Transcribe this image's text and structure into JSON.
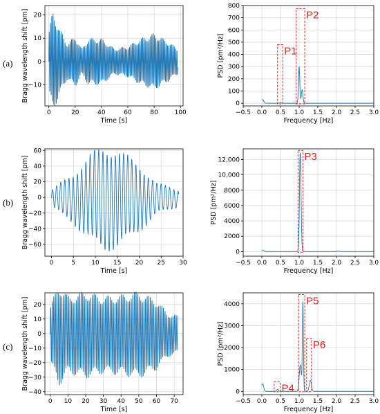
{
  "row_labels": [
    "(a)",
    "(b)",
    "(c)"
  ],
  "colors": {
    "line": "#1f77b4",
    "box": "#e8211d",
    "grid": "#d9d9d9",
    "axis": "#000000"
  },
  "chart_data": [
    {
      "id": "a-time",
      "type": "line",
      "xlabel": "Time [s]",
      "ylabel": "Bragg wavelength shift [pm]",
      "xlim": [
        -3,
        102
      ],
      "ylim": [
        -19,
        24
      ],
      "grid": true,
      "xticks": [
        0,
        20,
        40,
        60,
        80,
        100
      ],
      "xtick_labels": [
        "0",
        "20",
        "40",
        "60",
        "80",
        "100"
      ],
      "yticks": [
        -10,
        0,
        10,
        20
      ],
      "ytick_labels": [
        "−10",
        "0",
        "10",
        "20"
      ],
      "signal": {
        "t_max": 98,
        "freq_hz": 1.0,
        "envelope": [
          [
            0,
            12
          ],
          [
            3,
            20
          ],
          [
            8,
            13
          ],
          [
            14,
            7
          ],
          [
            20,
            10
          ],
          [
            25,
            5
          ],
          [
            30,
            9
          ],
          [
            40,
            9
          ],
          [
            50,
            5
          ],
          [
            60,
            6
          ],
          [
            70,
            9
          ],
          [
            80,
            11
          ],
          [
            90,
            8
          ],
          [
            98,
            5
          ]
        ]
      }
    },
    {
      "id": "a-psd",
      "type": "line",
      "xlabel": "Frequency [Hz]",
      "ylabel": "PSD [pm²/Hz]",
      "xlim": [
        -0.5,
        3.0
      ],
      "ylim": [
        -22,
        800
      ],
      "grid": true,
      "xticks": [
        -0.5,
        0.0,
        0.5,
        1.0,
        1.5,
        2.0,
        2.5,
        3.0
      ],
      "xtick_labels": [
        "−0.5",
        "0.0",
        "0.5",
        "1.0",
        "1.5",
        "2.0",
        "2.5",
        "3.0"
      ],
      "yticks": [
        0,
        100,
        200,
        300,
        400,
        500,
        600,
        700,
        800
      ],
      "ytick_labels": [
        "0",
        "100",
        "200",
        "300",
        "400",
        "500",
        "600",
        "700",
        "800"
      ],
      "peaks": [
        [
          0.02,
          30,
          0.04
        ],
        [
          0.5,
          8,
          0.03
        ],
        [
          1.0,
          300,
          0.025
        ],
        [
          1.08,
          110,
          0.03
        ]
      ],
      "boxes": [
        {
          "label": "P1",
          "x0": 0.42,
          "x1": 0.56,
          "y0": -5,
          "y1": 480
        },
        {
          "label": "P2",
          "x0": 0.92,
          "x1": 1.15,
          "y0": -5,
          "y1": 775
        }
      ]
    },
    {
      "id": "b-time",
      "type": "line",
      "xlabel": "Time [s]",
      "ylabel": "Bragg wavelength shift [pm]",
      "xlim": [
        -1.5,
        30
      ],
      "ylim": [
        -75,
        62
      ],
      "grid": true,
      "xticks": [
        0,
        5,
        10,
        15,
        20,
        25,
        30
      ],
      "xtick_labels": [
        "0",
        "5",
        "10",
        "15",
        "20",
        "25",
        "30"
      ],
      "yticks": [
        -60,
        -40,
        -20,
        0,
        20,
        40,
        60
      ],
      "ytick_labels": [
        "−60",
        "−40",
        "−20",
        "0",
        "20",
        "40",
        "60"
      ],
      "signal": {
        "t_max": 29,
        "freq_hz": 1.05,
        "offset": -8,
        "envelope": [
          [
            0,
            10
          ],
          [
            5,
            30
          ],
          [
            9,
            52
          ],
          [
            12,
            62
          ],
          [
            15,
            58
          ],
          [
            20,
            40
          ],
          [
            24,
            18
          ],
          [
            27,
            14
          ],
          [
            29,
            10
          ]
        ]
      }
    },
    {
      "id": "b-psd",
      "type": "line",
      "xlabel": "Frequency [Hz]",
      "ylabel": "PSD [pm²/Hz]",
      "xlim": [
        -0.5,
        3.0
      ],
      "ylim": [
        -600,
        13400
      ],
      "grid": true,
      "xticks": [
        -0.5,
        0.0,
        0.5,
        1.0,
        1.5,
        2.0,
        2.5,
        3.0
      ],
      "xtick_labels": [
        "−0.5",
        "0.0",
        "0.5",
        "1.0",
        "1.5",
        "2.0",
        "2.5",
        "3.0"
      ],
      "yticks": [
        0,
        2000,
        4000,
        6000,
        8000,
        10000,
        12000
      ],
      "ytick_labels": [
        "0",
        "2000",
        "4000",
        "6000",
        "8000",
        "10,000",
        "12,000"
      ],
      "peaks": [
        [
          0.03,
          200,
          0.04
        ],
        [
          1.03,
          12900,
          0.03
        ],
        [
          2.05,
          60,
          0.04
        ]
      ],
      "boxes": [
        {
          "label": "P3",
          "x0": 0.97,
          "x1": 1.1,
          "y0": -120,
          "y1": 13200
        }
      ]
    },
    {
      "id": "c-time",
      "type": "line",
      "xlabel": "Time [s]",
      "ylabel": "Bragg wavelength shift [pm]",
      "xlim": [
        -3,
        75
      ],
      "ylim": [
        -42,
        28
      ],
      "grid": true,
      "xticks": [
        0,
        10,
        20,
        30,
        40,
        50,
        60,
        70
      ],
      "xtick_labels": [
        "0",
        "10",
        "20",
        "30",
        "40",
        "50",
        "60",
        "70"
      ],
      "yticks": [
        -40,
        -30,
        -20,
        -10,
        0,
        10,
        20
      ],
      "ytick_labels": [
        "−40",
        "−30",
        "−20",
        "−10",
        "0",
        "10",
        "20"
      ],
      "signal": {
        "t_max": 72,
        "freq_hz": 1.1,
        "offset": -6,
        "envelope": [
          [
            0,
            18
          ],
          [
            5,
            32
          ],
          [
            10,
            24
          ],
          [
            20,
            27
          ],
          [
            30,
            24
          ],
          [
            40,
            25
          ],
          [
            50,
            27
          ],
          [
            60,
            22
          ],
          [
            66,
            14
          ],
          [
            72,
            12
          ]
        ]
      }
    },
    {
      "id": "c-psd",
      "type": "line",
      "xlabel": "Frequency [Hz]",
      "ylabel": "PSD [pm²/Hz]",
      "xlim": [
        -0.5,
        3.0
      ],
      "ylim": [
        -150,
        4500
      ],
      "grid": true,
      "xticks": [
        -0.5,
        0.0,
        0.5,
        1.0,
        1.5,
        2.0,
        2.5,
        3.0
      ],
      "xtick_labels": [
        "−0.5",
        "0.0",
        "0.5",
        "1.0",
        "1.5",
        "2.0",
        "2.5",
        "3.0"
      ],
      "yticks": [
        0,
        1000,
        2000,
        3000,
        4000
      ],
      "ytick_labels": [
        "0",
        "1000",
        "2000",
        "3000",
        "4000"
      ],
      "peaks": [
        [
          0.02,
          350,
          0.04
        ],
        [
          0.42,
          90,
          0.03
        ],
        [
          1.03,
          1200,
          0.04
        ],
        [
          1.1,
          4050,
          0.02
        ],
        [
          1.3,
          500,
          0.04
        ]
      ],
      "boxes": [
        {
          "label": "P4",
          "x0": 0.33,
          "x1": 0.49,
          "y0": -20,
          "y1": 430
        },
        {
          "label": "P5",
          "x0": 0.98,
          "x1": 1.15,
          "y0": -20,
          "y1": 4420
        },
        {
          "label": "P6",
          "x0": 1.2,
          "x1": 1.33,
          "y0": -20,
          "y1": 2420
        }
      ]
    }
  ]
}
